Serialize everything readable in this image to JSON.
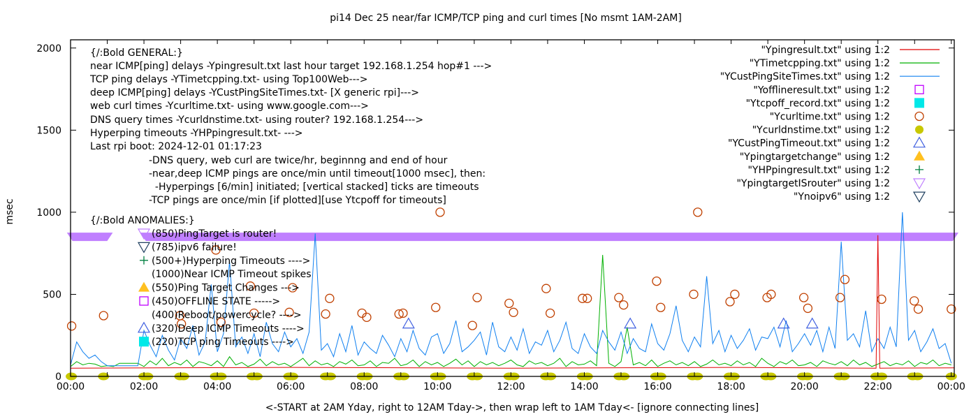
{
  "chart_data": {
    "type": "line",
    "title": "pi14 Dec 25  near/far ICMP/TCP ping and curl times [No msmt 1AM-2AM]",
    "xlabel": "<-START at 2AM Yday, right to 12AM Tday->, then wrap left to 1AM Tday<- [ignore connecting lines]",
    "ylabel": "msec",
    "xlim_hours": [
      0,
      24.08
    ],
    "ylim": [
      0,
      2050
    ],
    "yticks": [
      "0",
      "500",
      "1000",
      "1500",
      "2000"
    ],
    "ytick_values": [
      0,
      500,
      1000,
      1500,
      2000
    ],
    "xticks": [
      "00:00",
      "02:00",
      "04:00",
      "06:00",
      "08:00",
      "10:00",
      "12:00",
      "14:00",
      "16:00",
      "18:00",
      "20:00",
      "22:00",
      "00:00"
    ],
    "grid": false,
    "legend_position": "top-right",
    "legend": [
      {
        "label": "\"Ypingresult.txt\" using 1:2",
        "style": "line",
        "color": "#e00000"
      },
      {
        "label": "\"YTimetcpping.txt\" using 1:2",
        "style": "line",
        "color": "#00b000"
      },
      {
        "label": "\"YCustPingSiteTimes.txt\" using 1:2",
        "style": "line",
        "color": "#1080f0"
      },
      {
        "label": "\"Yofflineresult.txt\" using 1:2",
        "style": "open-square",
        "color": "#c000ff"
      },
      {
        "label": "\"Ytcpoff_record.txt\" using 1:2",
        "style": "filled-square",
        "color": "#00e8e8"
      },
      {
        "label": "\"Ycurltime.txt\" using 1:2",
        "style": "open-circle",
        "color": "#c04000"
      },
      {
        "label": "\"Ycurldnstime.txt\" using 1:2",
        "style": "filled-circle",
        "color": "#c8c800"
      },
      {
        "label": "\"YCustPingTimeout.txt\" using 1:2",
        "style": "open-triangle-up",
        "color": "#4060e0"
      },
      {
        "label": "\"Ypingtargetchange\" using 1:2",
        "style": "filled-triangle-up",
        "color": "#ffc020"
      },
      {
        "label": "\"YHPpingresult.txt\" using 1:2",
        "style": "plus",
        "color": "#008040"
      },
      {
        "label": "\"YpingtargetISrouter\" using 1:2",
        "style": "open-triangle-down",
        "color": "#c080ff"
      },
      {
        "label": "\"Ynoipv6\" using 1:2",
        "style": "open-triangle-down",
        "color": "#204060"
      }
    ],
    "series": {
      "cust_ping_interval_min": 10,
      "cust_ping": [
        70,
        210,
        150,
        110,
        130,
        90,
        65,
        65,
        65,
        65,
        65,
        65,
        280,
        190,
        120,
        250,
        160,
        100,
        230,
        170,
        310,
        130,
        210,
        560,
        150,
        260,
        700,
        180,
        240,
        140,
        260,
        120,
        330,
        200,
        150,
        270,
        180,
        230,
        140,
        270,
        870,
        160,
        200,
        120,
        260,
        150,
        310,
        130,
        210,
        170,
        140,
        250,
        190,
        120,
        230,
        150,
        280,
        170,
        130,
        240,
        260,
        140,
        200,
        340,
        150,
        180,
        220,
        270,
        130,
        330,
        180,
        150,
        240,
        160,
        290,
        140,
        210,
        190,
        280,
        150,
        220,
        330,
        170,
        140,
        260,
        180,
        140,
        280,
        210,
        160,
        270,
        140,
        230,
        170,
        150,
        320,
        200,
        160,
        260,
        430,
        220,
        150,
        240,
        180,
        610,
        200,
        280,
        150,
        250,
        170,
        220,
        290,
        160,
        240,
        230,
        300,
        180,
        340,
        150,
        200,
        260,
        190,
        280,
        150,
        300,
        170,
        820,
        220,
        260,
        180,
        400,
        150,
        230,
        170,
        300,
        180,
        1000,
        220,
        280,
        150,
        210,
        290,
        170,
        200,
        80
      ],
      "tcp_ping": [
        60,
        90,
        70,
        80,
        75,
        60,
        65,
        60,
        80,
        80,
        80,
        80,
        60,
        95,
        70,
        110,
        65,
        85,
        70,
        100,
        60,
        90,
        80,
        65,
        95,
        60,
        120,
        70,
        85,
        60,
        75,
        105,
        65,
        90,
        70,
        80,
        60,
        85,
        110,
        65,
        95,
        70,
        80,
        60,
        90,
        75,
        100,
        65,
        70,
        95,
        60,
        85,
        80,
        110,
        65,
        75,
        100,
        60,
        90,
        70,
        85,
        60,
        80,
        105,
        70,
        95,
        60,
        90,
        70,
        85,
        65,
        80,
        100,
        70,
        60,
        95,
        75,
        85,
        65,
        80,
        110,
        60,
        90,
        70,
        75,
        95,
        65,
        740,
        80,
        60,
        90,
        300,
        70,
        85,
        65,
        100,
        60,
        80,
        95,
        70,
        85,
        65,
        90,
        60,
        75,
        100,
        70,
        80,
        65,
        95,
        70,
        85,
        60,
        110,
        80,
        60,
        90,
        75,
        100,
        65,
        70,
        85,
        60,
        95,
        80,
        70,
        90,
        65,
        100,
        70,
        85,
        60,
        75,
        90,
        65,
        80,
        70,
        95,
        60,
        85,
        75,
        100,
        65,
        80,
        70
      ],
      "near_icmp": [
        [
          0,
          50
        ],
        [
          6,
          55
        ],
        [
          12,
          50
        ],
        [
          18,
          55
        ],
        [
          21.95,
          50
        ],
        [
          22.0,
          860
        ],
        [
          22.05,
          50
        ],
        [
          24.08,
          52
        ]
      ],
      "curl_times": [
        [
          0.03,
          307
        ],
        [
          0.9,
          370
        ],
        [
          2.98,
          370
        ],
        [
          3.02,
          320
        ],
        [
          3.96,
          770
        ],
        [
          4.1,
          330
        ],
        [
          4.9,
          550
        ],
        [
          5.0,
          385
        ],
        [
          5.96,
          390
        ],
        [
          6.05,
          540
        ],
        [
          6.95,
          380
        ],
        [
          7.06,
          475
        ],
        [
          7.94,
          385
        ],
        [
          8.07,
          360
        ],
        [
          8.95,
          380
        ],
        [
          9.06,
          385
        ],
        [
          9.95,
          420
        ],
        [
          10.07,
          1000
        ],
        [
          10.95,
          310
        ],
        [
          11.08,
          480
        ],
        [
          11.95,
          445
        ],
        [
          12.07,
          390
        ],
        [
          12.96,
          535
        ],
        [
          13.07,
          385
        ],
        [
          13.95,
          475
        ],
        [
          14.08,
          475
        ],
        [
          14.94,
          480
        ],
        [
          15.07,
          435
        ],
        [
          15.97,
          580
        ],
        [
          16.08,
          420
        ],
        [
          16.98,
          500
        ],
        [
          17.09,
          1000
        ],
        [
          17.97,
          455
        ],
        [
          18.1,
          500
        ],
        [
          18.98,
          480
        ],
        [
          19.09,
          500
        ],
        [
          19.98,
          480
        ],
        [
          20.09,
          415
        ],
        [
          20.97,
          480
        ],
        [
          21.1,
          590
        ],
        [
          22.1,
          470
        ],
        [
          22.99,
          460
        ],
        [
          23.1,
          410
        ],
        [
          24.0,
          410
        ]
      ],
      "dns_times": [
        [
          0.02,
          0
        ],
        [
          0.9,
          0
        ],
        [
          2.0,
          0
        ],
        [
          2.1,
          0
        ],
        [
          2.98,
          0
        ],
        [
          3.08,
          0
        ],
        [
          3.95,
          0
        ],
        [
          4.1,
          0
        ],
        [
          4.95,
          0
        ],
        [
          5.08,
          0
        ],
        [
          5.95,
          0
        ],
        [
          6.05,
          0
        ],
        [
          6.95,
          0
        ],
        [
          7.08,
          0
        ],
        [
          7.95,
          0
        ],
        [
          8.08,
          0
        ],
        [
          8.95,
          0
        ],
        [
          9.08,
          0
        ],
        [
          9.95,
          0
        ],
        [
          10.08,
          0
        ],
        [
          10.95,
          0
        ],
        [
          11.08,
          0
        ],
        [
          11.95,
          0
        ],
        [
          12.08,
          0
        ],
        [
          12.95,
          0
        ],
        [
          13.08,
          0
        ],
        [
          13.95,
          0
        ],
        [
          14.08,
          0
        ],
        [
          14.95,
          0
        ],
        [
          15.08,
          0
        ],
        [
          15.95,
          0
        ],
        [
          16.08,
          0
        ],
        [
          16.95,
          0
        ],
        [
          17.08,
          0
        ],
        [
          17.95,
          0
        ],
        [
          18.08,
          0
        ],
        [
          18.95,
          0
        ],
        [
          19.08,
          0
        ],
        [
          19.95,
          0
        ],
        [
          20.08,
          0
        ],
        [
          20.95,
          0
        ],
        [
          21.08,
          0
        ],
        [
          21.95,
          0
        ],
        [
          22.1,
          0
        ],
        [
          22.95,
          0
        ],
        [
          23.08,
          0
        ],
        [
          24.0,
          0
        ]
      ],
      "cust_ping_timeouts": [
        [
          9.21,
          320
        ],
        [
          15.25,
          320
        ],
        [
          19.43,
          320
        ],
        [
          20.21,
          320
        ]
      ],
      "pingtarget_is_router_ranges": [
        [
          -0.1,
          1.15,
          850
        ],
        [
          1.9,
          24.2,
          850
        ]
      ]
    }
  },
  "annotations": {
    "general": [
      "{/:Bold GENERAL:}",
      "near ICMP[ping] delays -Ypingresult.txt last hour target 192.168.1.254 hop#1 --->",
      "TCP ping delays -YTimetcpping.txt- using Top100Web--->",
      "deep ICMP[ping] delays -YCustPingSiteTimes.txt- [X generic rpi]--->",
      "web curl times -Ycurltime.txt- using www.google.com--->",
      "DNS query times -Ycurldnstime.txt- using router? 192.168.1.254--->",
      "Hyperping timeouts -YHPpingresult.txt- --->",
      "Last rpi boot: 2024-12-01 01:17:23"
    ],
    "notes": [
      "-DNS query, web curl are twice/hr, beginnng and end of hour",
      "-near,deep ICMP pings are once/min until timeout[1000 msec], then:",
      "  -Hyperpings [6/min] initiated; [vertical stacked] ticks are timeouts",
      "-TCP pings are once/min [if plotted][use Ytcpoff for timeouts]"
    ],
    "anomalies_heading": "{/:Bold ANOMALIES:}",
    "anomalies": [
      {
        "text": "(850)PingTarget is router!",
        "symbol": "open-triangle-down",
        "color": "#c080ff"
      },
      {
        "text": "(785)ipv6 failure!",
        "symbol": "open-triangle-down",
        "color": "#204060"
      },
      {
        "text": "(500+)Hyperping Timeouts ---->",
        "symbol": "plus",
        "color": "#008040"
      },
      {
        "text": "(1000)Near ICMP Timeout spikes",
        "symbol": "none",
        "color": "#e00000"
      },
      {
        "text": "(550)Ping Target Changes --->",
        "symbol": "filled-triangle-up",
        "color": "#ffc020"
      },
      {
        "text": "(450)OFFLINE STATE ----->",
        "symbol": "open-square",
        "color": "#c000ff"
      },
      {
        "text": "(400)Reboot/powercycle? ---->",
        "symbol": "none",
        "color": "#000000"
      },
      {
        "text": "(320)Deep ICMP Timeouts ---->",
        "symbol": "open-triangle-up",
        "color": "#4060e0"
      },
      {
        "text": "(220)TCP ping Timeouts ---->",
        "symbol": "filled-square",
        "color": "#00e8e8"
      }
    ]
  }
}
